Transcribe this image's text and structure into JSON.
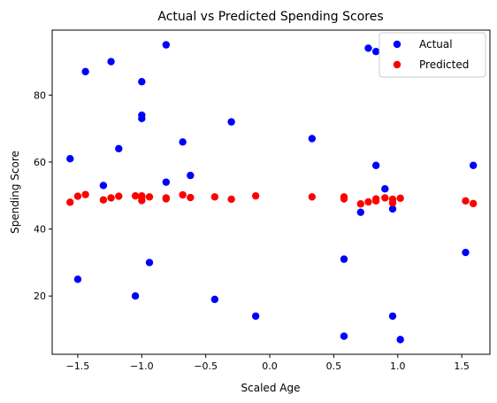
{
  "chart_data": {
    "type": "scatter",
    "title": "Actual vs Predicted Spending Scores",
    "xlabel": "Scaled Age",
    "ylabel": "Spending Score",
    "xlim": [
      -1.7,
      1.72
    ],
    "ylim": [
      2.6,
      99.4
    ],
    "xticks": [
      -1.5,
      -1.0,
      -0.5,
      0.0,
      0.5,
      1.0,
      1.5
    ],
    "xtick_labels": [
      "−1.5",
      "−1.0",
      "−0.5",
      "0.0",
      "0.5",
      "1.0",
      "1.5"
    ],
    "yticks": [
      20,
      40,
      60,
      80
    ],
    "ytick_labels": [
      "20",
      "40",
      "60",
      "80"
    ],
    "grid": false,
    "legend_position": "top-right",
    "series": [
      {
        "name": "Actual",
        "color": "#0000ff",
        "points": [
          [
            -1.56,
            61
          ],
          [
            -1.5,
            25
          ],
          [
            -1.44,
            87
          ],
          [
            -1.3,
            53
          ],
          [
            -1.24,
            90
          ],
          [
            -1.18,
            64
          ],
          [
            -1.05,
            20
          ],
          [
            -1.0,
            84
          ],
          [
            -1.0,
            74
          ],
          [
            -1.0,
            73
          ],
          [
            -0.94,
            30
          ],
          [
            -0.81,
            95
          ],
          [
            -0.81,
            54
          ],
          [
            -0.68,
            66
          ],
          [
            -0.62,
            56
          ],
          [
            -0.43,
            19
          ],
          [
            -0.3,
            72
          ],
          [
            -0.11,
            14
          ],
          [
            0.33,
            67
          ],
          [
            0.58,
            31
          ],
          [
            0.58,
            8
          ],
          [
            0.71,
            45
          ],
          [
            0.77,
            94
          ],
          [
            0.83,
            93
          ],
          [
            0.83,
            59
          ],
          [
            0.9,
            52
          ],
          [
            0.96,
            46
          ],
          [
            0.96,
            14
          ],
          [
            1.02,
            7
          ],
          [
            1.53,
            33
          ],
          [
            1.59,
            59
          ]
        ]
      },
      {
        "name": "Predicted",
        "color": "#ff0000",
        "points": [
          [
            -1.56,
            48.0
          ],
          [
            -1.5,
            49.8
          ],
          [
            -1.44,
            50.3
          ],
          [
            -1.3,
            48.7
          ],
          [
            -1.24,
            49.3
          ],
          [
            -1.18,
            49.8
          ],
          [
            -1.05,
            49.9
          ],
          [
            -1.0,
            49.9
          ],
          [
            -1.0,
            49.6
          ],
          [
            -1.0,
            48.5
          ],
          [
            -0.94,
            49.6
          ],
          [
            -0.81,
            49.3
          ],
          [
            -0.81,
            49.0
          ],
          [
            -0.68,
            50.2
          ],
          [
            -0.62,
            49.4
          ],
          [
            -0.43,
            49.6
          ],
          [
            -0.3,
            48.9
          ],
          [
            -0.11,
            49.9
          ],
          [
            0.33,
            49.6
          ],
          [
            0.58,
            49.6
          ],
          [
            0.58,
            49.0
          ],
          [
            0.71,
            47.5
          ],
          [
            0.77,
            48.1
          ],
          [
            0.83,
            49.0
          ],
          [
            0.83,
            48.4
          ],
          [
            0.9,
            49.3
          ],
          [
            0.96,
            48.9
          ],
          [
            0.96,
            47.8
          ],
          [
            1.02,
            49.2
          ],
          [
            1.53,
            48.4
          ],
          [
            1.59,
            47.6
          ]
        ]
      }
    ]
  }
}
